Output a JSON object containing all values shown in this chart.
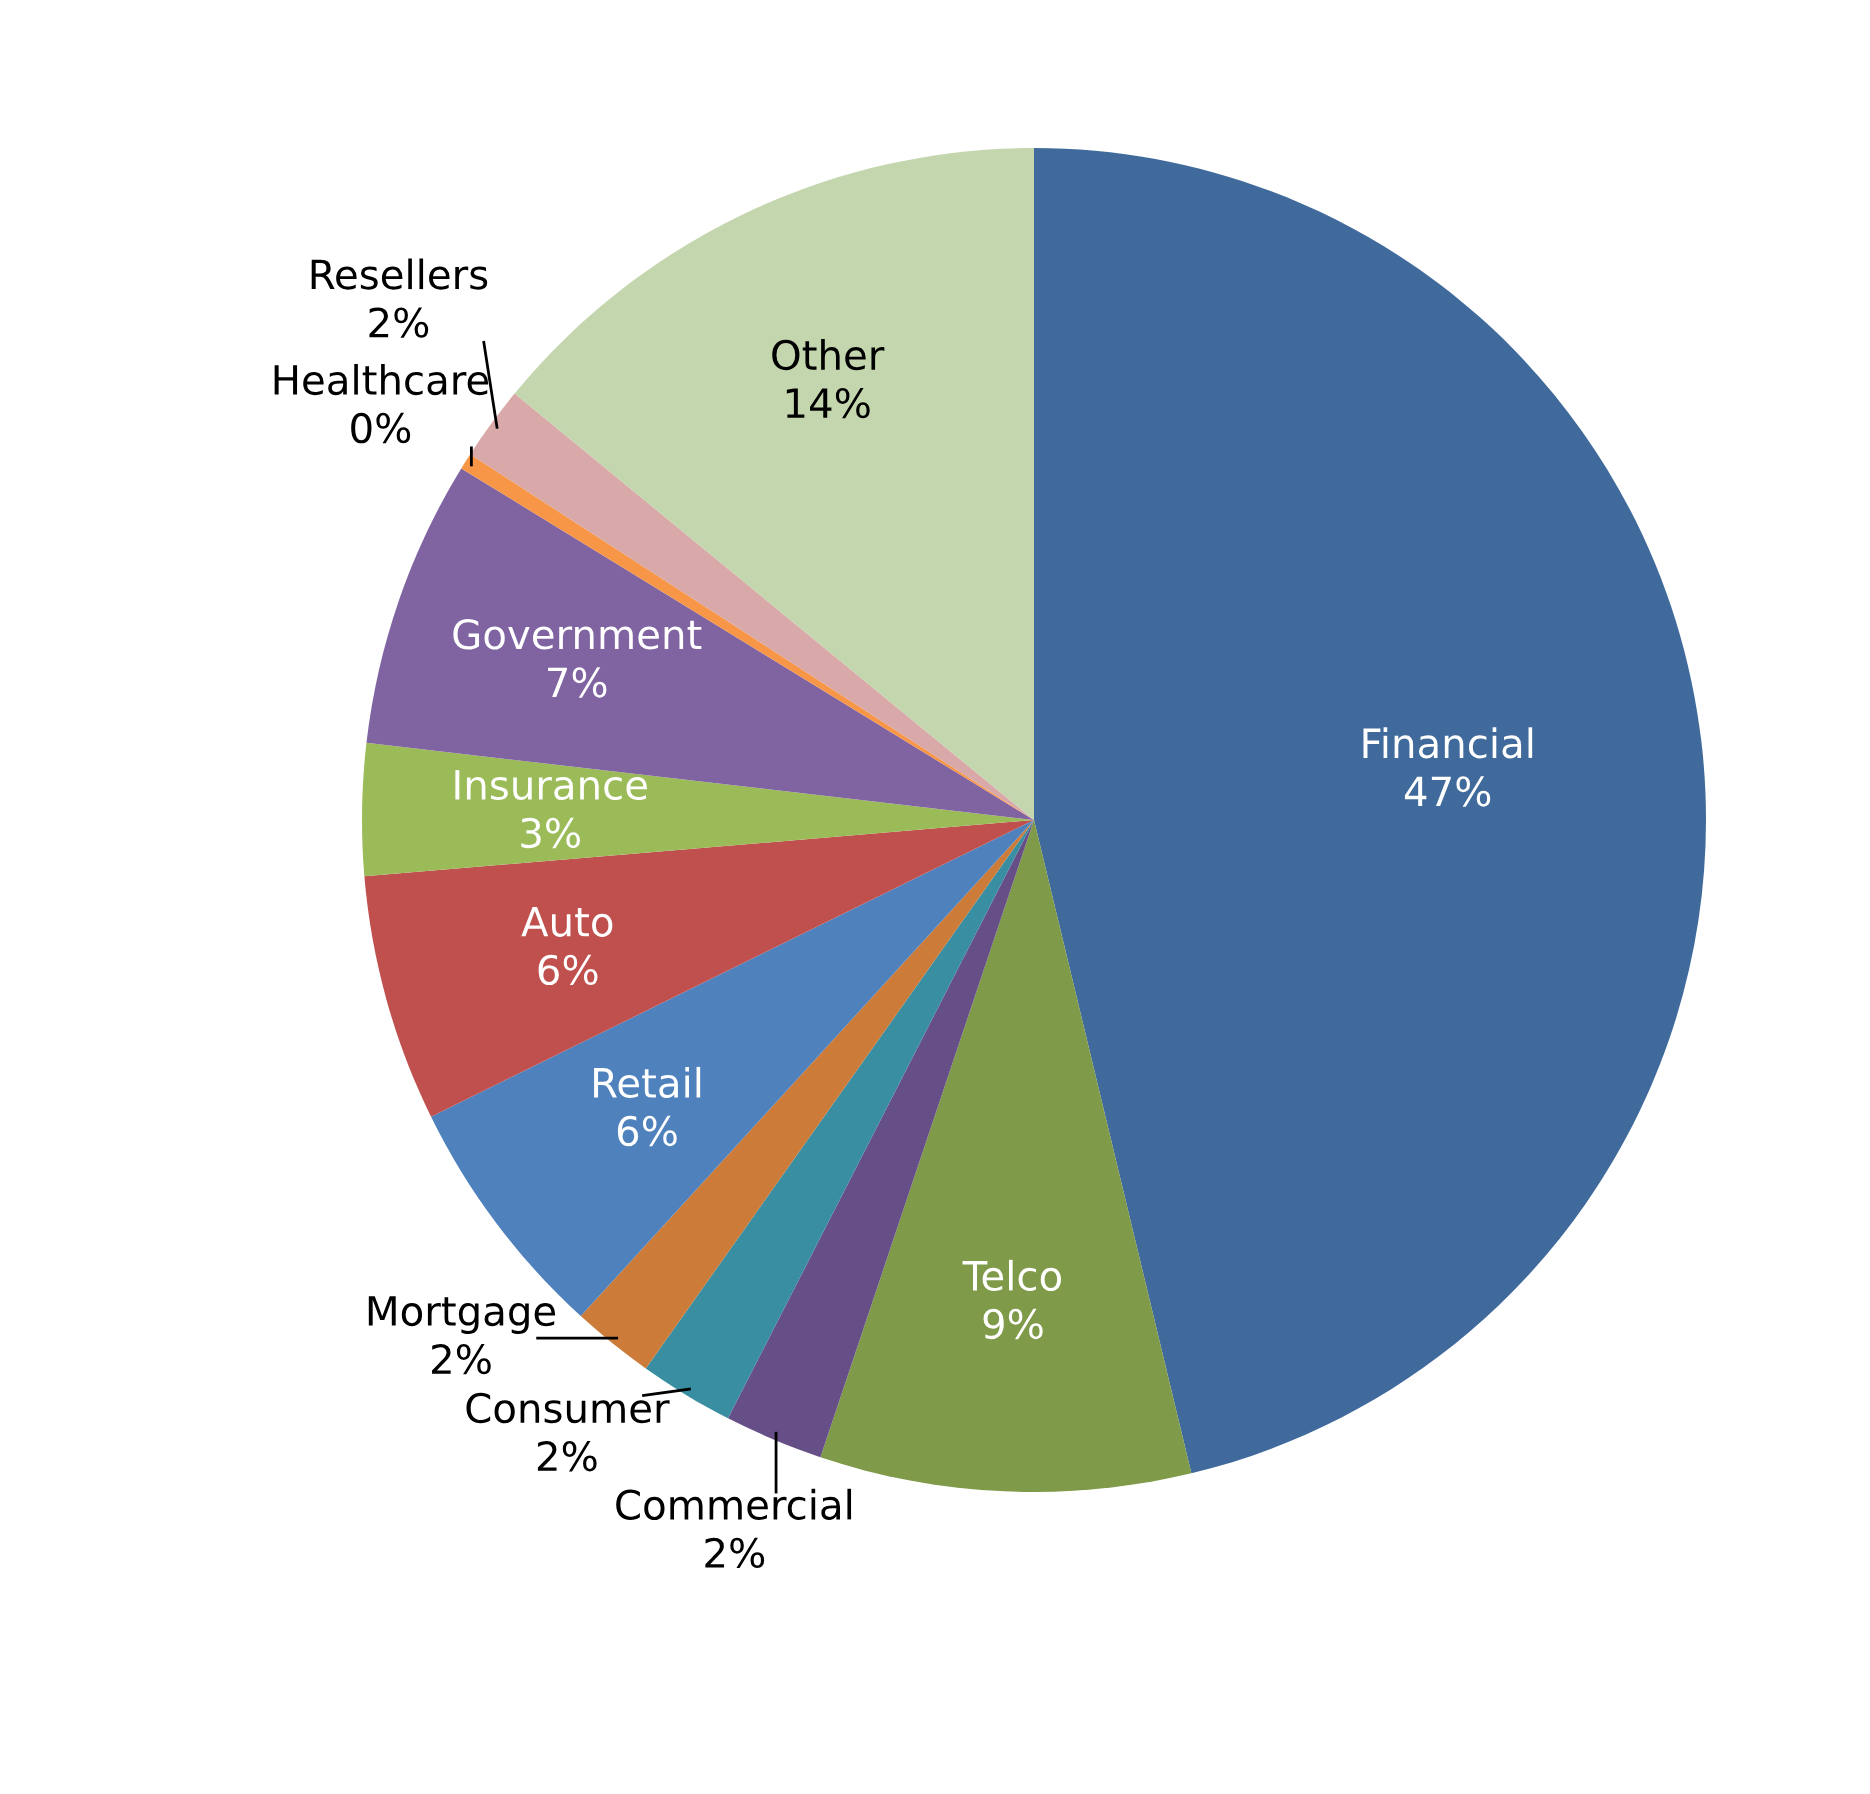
{
  "chart_data": {
    "type": "pie",
    "categories": [
      "Financial",
      "Telco",
      "Commercial",
      "Consumer",
      "Mortgage",
      "Retail",
      "Auto",
      "Insurance",
      "Government",
      "Healthcare",
      "Resellers",
      "Other"
    ],
    "values": [
      46.7,
      9,
      2.4,
      2.3,
      2,
      6,
      6,
      3.2,
      7,
      0.4,
      1.8,
      14.2
    ],
    "value_labels": [
      "47%",
      "9%",
      "2%",
      "2%",
      "2%",
      "6%",
      "6%",
      "3%",
      "7%",
      "0%",
      "2%",
      "14%"
    ],
    "colors": [
      "#416a9c",
      "#7f9a48",
      "#664e87",
      "#3a8ea1",
      "#cc7b38",
      "#4f81bd",
      "#c0504d",
      "#9bbb59",
      "#8064a2",
      "#f79646",
      "#d9a8a8",
      "#c4d6ae"
    ]
  }
}
